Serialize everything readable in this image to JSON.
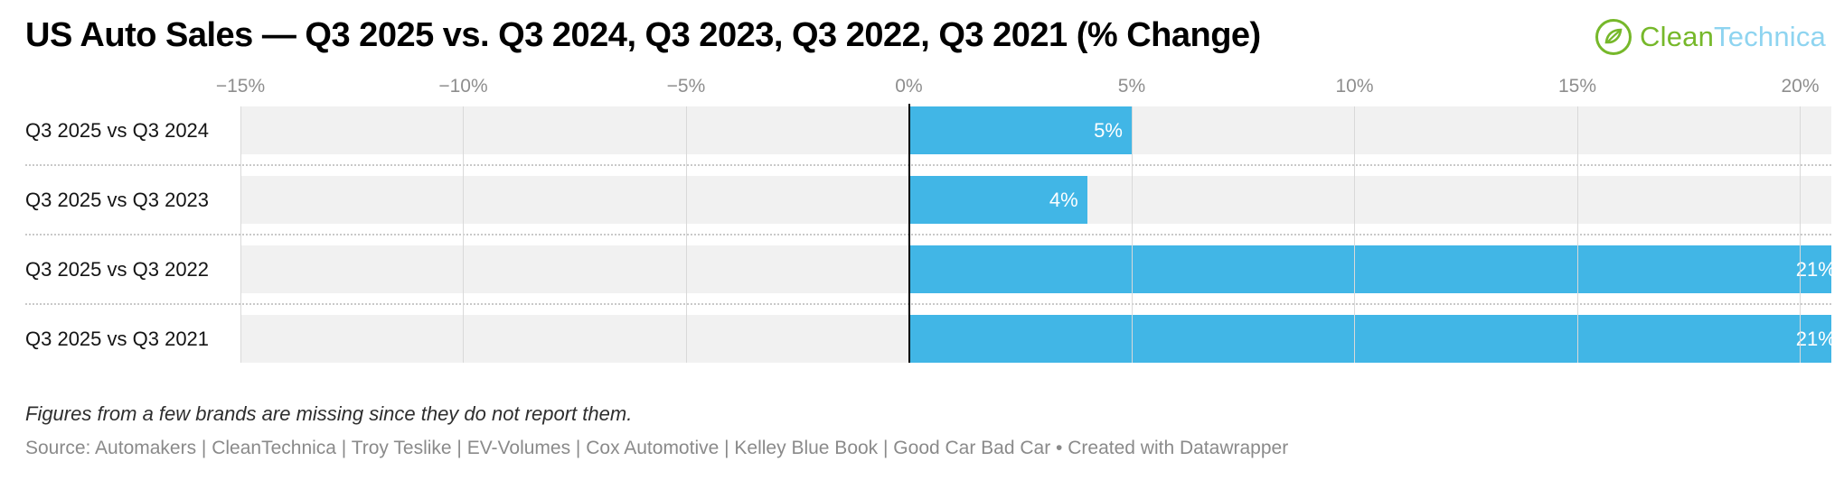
{
  "title": "US Auto Sales — Q3 2025 vs. Q3 2024, Q3 2023, Q3 2022, Q3 2021 (% Change)",
  "logo": {
    "clean": "Clean",
    "technica": "Technica"
  },
  "colors": {
    "bar": "#41b6e6",
    "row_background": "#f1f1f1",
    "gridline": "#d9d9d9",
    "zero_line": "#000000",
    "logo_green": "#76b82a",
    "logo_blue": "#8ed4f0"
  },
  "chart_data": {
    "type": "bar",
    "orientation": "horizontal",
    "title": "US Auto Sales — Q3 2025 vs. Q3 2024, Q3 2023, Q3 2022, Q3 2021 (% Change)",
    "categories": [
      "Q3 2025 vs Q3 2024",
      "Q3 2025 vs Q3 2023",
      "Q3 2025 vs Q3 2022",
      "Q3 2025 vs Q3 2021"
    ],
    "values": [
      5,
      4,
      21,
      21
    ],
    "value_labels": [
      "5%",
      "4%",
      "21%",
      "21%"
    ],
    "xlim": [
      -15,
      20.7
    ],
    "ticks": [
      -15,
      -10,
      -5,
      0,
      5,
      10,
      15,
      20
    ],
    "tick_labels": [
      "−15%",
      "−10%",
      "−5%",
      "0%",
      "5%",
      "10%",
      "15%",
      "20%"
    ],
    "grid": true,
    "legend": "none",
    "xlabel": "",
    "ylabel": ""
  },
  "footnote": "Figures from a few brands are missing since they do not report them.",
  "source": "Source: Automakers | CleanTechnica | Troy Teslike | EV-Volumes | Cox Automotive | Kelley Blue Book | Good Car Bad Car • Created with Datawrapper"
}
